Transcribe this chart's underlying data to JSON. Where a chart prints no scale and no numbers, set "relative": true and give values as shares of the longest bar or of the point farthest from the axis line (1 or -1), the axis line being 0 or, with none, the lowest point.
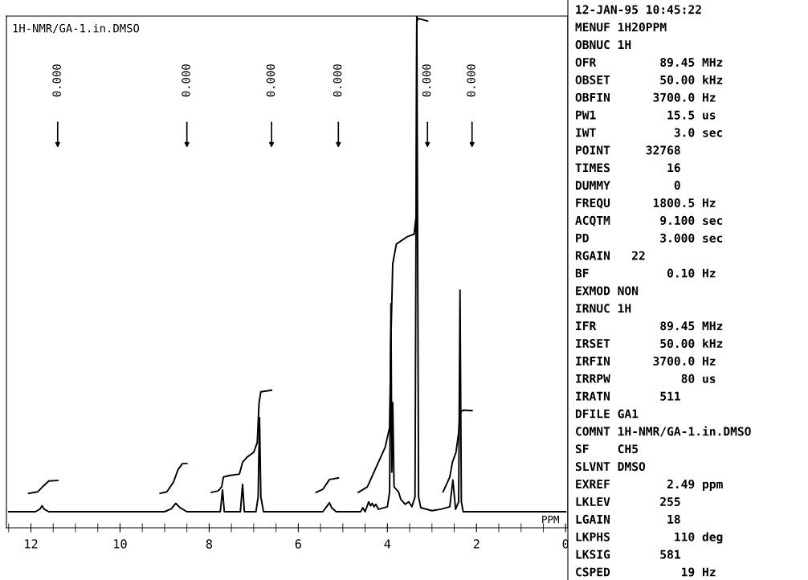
{
  "chart_data": [
    {
      "type": "line",
      "title": "1H-NMR/GA-1.in.DMSO",
      "xlabel": "PPM",
      "relative": true,
      "grid": false,
      "legend": false,
      "marker": "none",
      "line_style": "solid",
      "xlim": [
        12.55,
        -0.05
      ],
      "xticks": [
        12,
        10,
        8,
        6,
        4,
        2,
        0
      ],
      "series": [
        {
          "color": "#000000",
          "type": "line",
          "x": [
            12.5,
            11.9,
            11.8,
            11.75,
            11.7,
            11.6,
            9.0,
            8.85,
            8.75,
            8.65,
            8.5,
            7.75,
            7.7,
            7.66,
            7.3,
            7.25,
            7.21,
            6.95,
            6.9,
            6.87,
            6.84,
            6.78,
            5.45,
            5.35,
            5.3,
            5.25,
            5.15,
            4.6,
            4.55,
            4.5,
            4.42,
            4.38,
            4.34,
            4.3,
            4.26,
            4.2,
            4.0,
            3.95,
            3.92,
            3.9,
            3.88,
            3.85,
            3.75,
            3.7,
            3.6,
            3.52,
            3.45,
            3.38,
            3.34,
            3.3,
            3.25,
            3.0,
            2.8,
            2.6,
            2.53,
            2.47,
            2.4,
            2.37,
            2.34,
            2.3,
            0.0
          ],
          "values": [
            0,
            0,
            0.005,
            0.012,
            0.005,
            0,
            0,
            0.006,
            0.017,
            0.008,
            0,
            0,
            0.044,
            0,
            0,
            0.055,
            0,
            0,
            0.03,
            0.19,
            0.03,
            0,
            0,
            0.012,
            0.018,
            0.008,
            0,
            0,
            0.008,
            0,
            0.02,
            0.012,
            0.017,
            0.01,
            0.015,
            0.005,
            0.01,
            0.04,
            0.42,
            0.08,
            0.22,
            0.05,
            0.04,
            0.025,
            0.015,
            0.02,
            0.01,
            0.03,
            1.0,
            0.03,
            0.008,
            0.002,
            0.005,
            0.01,
            0.064,
            0.005,
            0.02,
            0.447,
            0.02,
            0,
            0
          ]
        },
        {
          "color": "#000000",
          "type": "line",
          "x": [
            12.05,
            11.85,
            11.72,
            11.6,
            11.4,
            10.0,
            9.1,
            8.95,
            8.8,
            8.7,
            8.6,
            8.5,
            8.2,
            7.95,
            7.8,
            7.72,
            7.68,
            7.55,
            7.32,
            7.25,
            7.15,
            7.0,
            6.92,
            6.88,
            6.84,
            6.6,
            6.0,
            5.6,
            5.45,
            5.3,
            5.1,
            4.9,
            4.65,
            4.45,
            4.25,
            4.05,
            3.95,
            3.92,
            3.88,
            3.8,
            3.55,
            3.4,
            3.35,
            3.34,
            3.3,
            3.1,
            3.0,
            2.75,
            2.6,
            2.54,
            2.46,
            2.4,
            2.37,
            2.3,
            2.1
          ],
          "values": [
            0.037,
            0.04,
            0.052,
            0.062,
            0.063,
            null,
            0.037,
            0.04,
            0.06,
            0.085,
            0.097,
            0.097,
            null,
            0.039,
            0.042,
            0.05,
            0.07,
            0.073,
            0.076,
            0.1,
            0.11,
            0.12,
            0.14,
            0.22,
            0.242,
            0.245,
            null,
            0.039,
            0.045,
            0.065,
            0.068,
            null,
            0.039,
            0.05,
            0.09,
            0.13,
            0.17,
            0.35,
            0.5,
            0.54,
            0.555,
            0.56,
            0.6,
            0.99,
            0.995,
            0.99,
            null,
            0.04,
            0.07,
            0.1,
            0.12,
            0.16,
            0.2,
            0.205,
            0.204
          ]
        }
      ],
      "annotations": [
        "0.000",
        "0.000",
        "0.000",
        "0.000",
        "0.000",
        "0.000"
      ]
    },
    {
      "type": "other",
      "annotations": [
        "12-JAN-95 10:45:22",
        "MENUF 1H20PPM",
        "OBNUC 1H",
        "OFR         89.45 MHz",
        "OBSET       50.00 kHz",
        "OBFIN      3700.0 Hz",
        "PW1          15.5 us",
        "IWT           3.0 sec",
        "POINT     32768",
        "TIMES        16",
        "DUMMY         0",
        "FREQU      1800.5 Hz",
        "ACQTM       9.100 sec",
        "PD          3.000 sec",
        "RGAIN   22",
        "BF           0.10 Hz",
        "EXMOD NON",
        "IRNUC 1H",
        "IFR         89.45 MHz",
        "IRSET       50.00 kHz",
        "IRFIN      3700.0 Hz",
        "IRRPW          80 us",
        "IRATN       511",
        "DFILE GA1",
        "COMNT 1H-NMR/GA-1.in.DMSO",
        "SF    CH5",
        "SLVNT DMSO",
        "EXREF        2.49 ppm",
        "LKLEV       255",
        "LGAIN        18",
        "LKPHS         110 deg",
        "LKSIG       581",
        "CSPED          19 Hz"
      ]
    }
  ]
}
